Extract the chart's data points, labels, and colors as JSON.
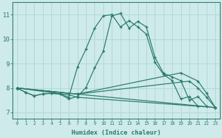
{
  "xlabel": "Humidex (Indice chaleur)",
  "bg_color": "#ceeaea",
  "grid_color": "#b0d8d8",
  "line_color": "#2a7a6a",
  "xlim": [
    -0.5,
    23.5
  ],
  "ylim": [
    6.75,
    11.5
  ],
  "x_ticks": [
    0,
    1,
    2,
    3,
    4,
    5,
    6,
    7,
    8,
    9,
    10,
    11,
    12,
    13,
    14,
    15,
    16,
    17,
    18,
    19,
    20,
    21,
    22,
    23
  ],
  "y_ticks": [
    7,
    8,
    9,
    10,
    11
  ],
  "line1": {
    "x": [
      0,
      1,
      2,
      3,
      4,
      5,
      6,
      7,
      8,
      9,
      10,
      11,
      12,
      13,
      14,
      15,
      16,
      17,
      18,
      19,
      20,
      21,
      22,
      23
    ],
    "y": [
      8.0,
      7.82,
      7.68,
      7.76,
      7.78,
      7.75,
      7.62,
      8.85,
      9.6,
      10.45,
      10.95,
      11.0,
      10.5,
      10.75,
      10.5,
      10.2,
      9.05,
      8.55,
      8.3,
      7.55,
      7.65,
      7.25,
      null,
      null
    ]
  },
  "line2": {
    "x": [
      0,
      1,
      2,
      3,
      4,
      5,
      6,
      7,
      8,
      9,
      10,
      11,
      12,
      13,
      14,
      15,
      16,
      17,
      18,
      19,
      20,
      21,
      22,
      23
    ],
    "y": [
      8.0,
      7.82,
      7.68,
      7.76,
      7.78,
      7.75,
      7.55,
      7.65,
      8.02,
      8.82,
      9.5,
      10.95,
      11.05,
      10.45,
      10.72,
      10.5,
      9.25,
      8.6,
      8.45,
      8.3,
      7.5,
      7.65,
      7.25,
      null
    ]
  },
  "line3_x": [
    0,
    7,
    19,
    21,
    22,
    23
  ],
  "line3_y": [
    8.0,
    7.75,
    8.62,
    8.28,
    7.78,
    7.2
  ],
  "line4_x": [
    0,
    7,
    20,
    21,
    22,
    23
  ],
  "line4_y": [
    8.0,
    7.75,
    8.28,
    8.0,
    7.62,
    7.2
  ],
  "line5_x": [
    0,
    7,
    23
  ],
  "line5_y": [
    8.0,
    7.75,
    7.2
  ],
  "line6_x": [
    0,
    6,
    7,
    23
  ],
  "line6_y": [
    8.0,
    7.72,
    7.62,
    7.2
  ]
}
